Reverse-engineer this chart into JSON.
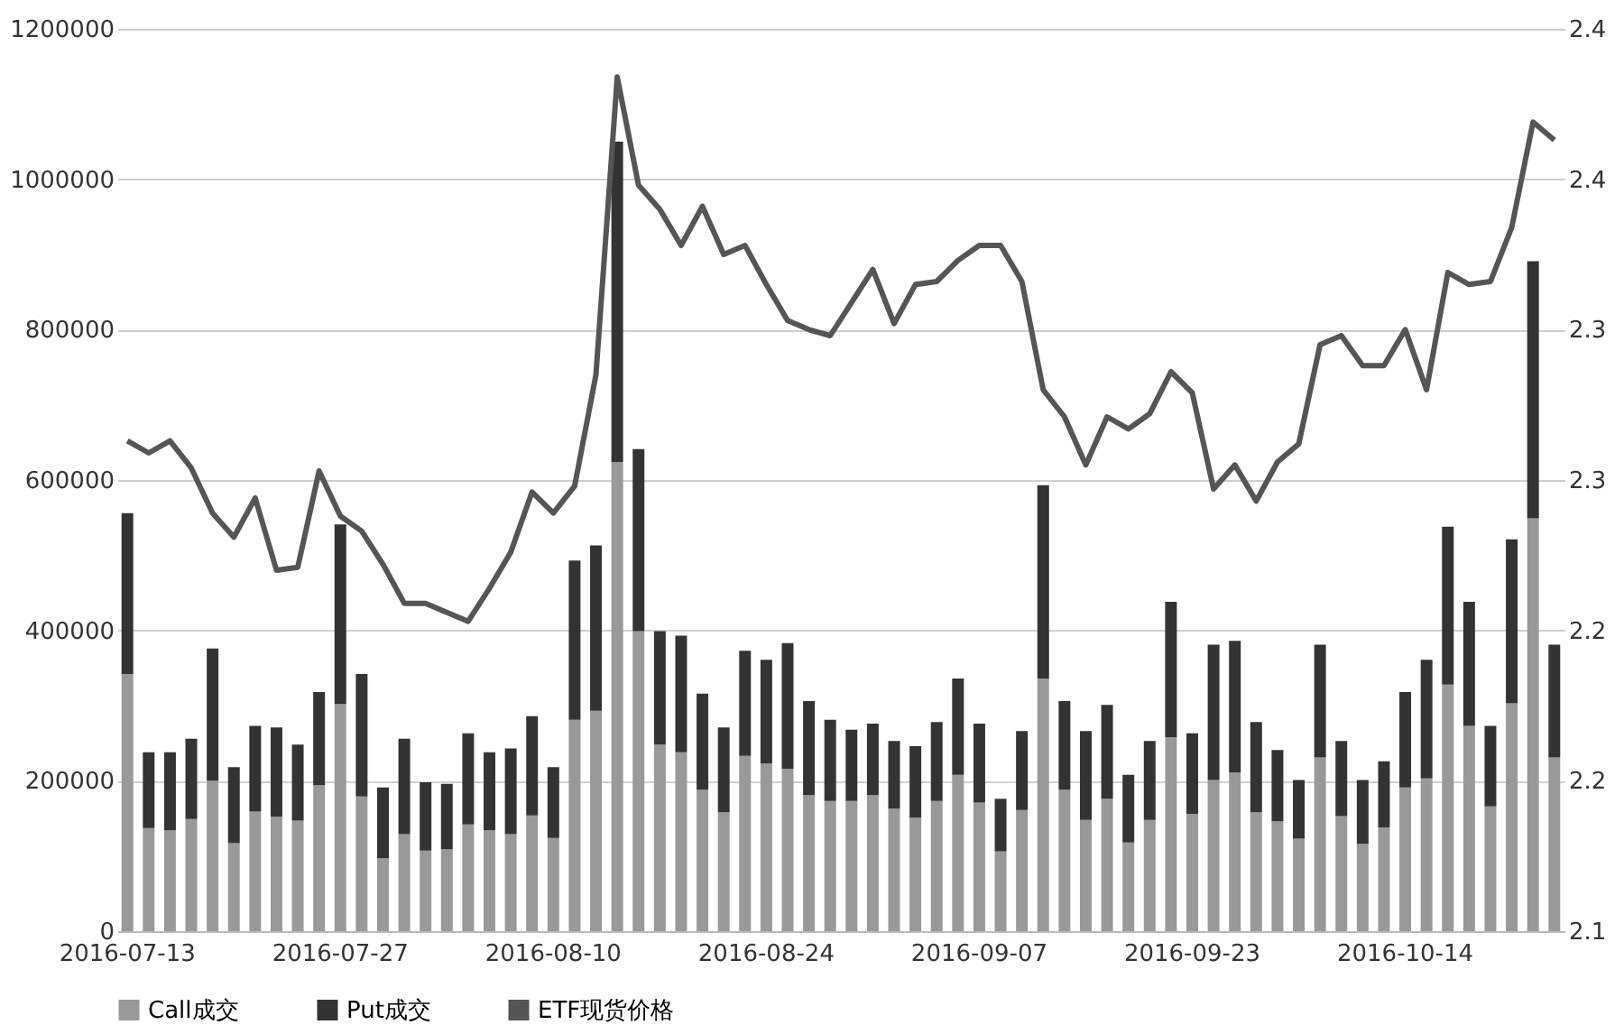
{
  "chart_data": {
    "type": "bar",
    "stacked": true,
    "categories": [
      "2016-07-13",
      null,
      null,
      null,
      null,
      null,
      null,
      null,
      null,
      null,
      "2016-07-27",
      null,
      null,
      null,
      null,
      null,
      null,
      null,
      null,
      null,
      "2016-08-10",
      null,
      null,
      null,
      null,
      null,
      null,
      null,
      null,
      null,
      "2016-08-24",
      null,
      null,
      null,
      null,
      null,
      null,
      null,
      null,
      null,
      "2016-09-07",
      null,
      null,
      null,
      null,
      null,
      null,
      null,
      null,
      null,
      "2016-09-23",
      null,
      null,
      null,
      null,
      null,
      null,
      null,
      null,
      null,
      "2016-10-14",
      null,
      null,
      null,
      null,
      null,
      null,
      null
    ],
    "series": [
      {
        "name": "Call成交",
        "color": "#999999",
        "values": [
          342000,
          137000,
          134000,
          149000,
          200000,
          117000,
          159000,
          152000,
          147000,
          194000,
          302000,
          179000,
          97000,
          129000,
          107000,
          109000,
          142000,
          134000,
          129000,
          154000,
          124000,
          281000,
          293000,
          624000,
          399000,
          248000,
          238000,
          188000,
          158000,
          233000,
          223000,
          216000,
          181000,
          173000,
          173000,
          181000,
          163000,
          151000,
          173000,
          208000,
          171000,
          106000,
          161000,
          336000,
          188000,
          148000,
          176000,
          118000,
          148000,
          258000,
          156000,
          201000,
          211000,
          158000,
          146000,
          123000,
          231000,
          153000,
          116000,
          138000,
          191000,
          203000,
          328000,
          273000,
          166000,
          303000,
          549000,
          231000
        ]
      },
      {
        "name": "Put成交",
        "color": "#333333",
        "values": [
          214000,
          101000,
          104000,
          107000,
          176000,
          101000,
          114000,
          119000,
          101000,
          124000,
          239000,
          163000,
          94000,
          127000,
          91000,
          87000,
          121000,
          104000,
          114000,
          132000,
          94000,
          212000,
          220000,
          426000,
          242000,
          151000,
          155000,
          128000,
          113000,
          140000,
          138000,
          167000,
          125000,
          108000,
          95000,
          95000,
          90000,
          95000,
          105000,
          128000,
          105000,
          70000,
          105000,
          257000,
          118000,
          118000,
          125000,
          90000,
          105000,
          180000,
          107000,
          180000,
          175000,
          120000,
          95000,
          78000,
          150000,
          100000,
          85000,
          88000,
          127000,
          158000,
          210000,
          165000,
          107000,
          218000,
          342000,
          150000
        ]
      },
      {
        "name": "ETF现货价格",
        "type": "line",
        "axis": "y2",
        "color": "#555555",
        "values": [
          2.263,
          2.259,
          2.263,
          2.254,
          2.239,
          2.231,
          2.244,
          2.22,
          2.221,
          2.253,
          2.238,
          2.233,
          2.222,
          2.209,
          2.209,
          2.206,
          2.203,
          2.214,
          2.226,
          2.246,
          2.239,
          2.248,
          2.285,
          2.384,
          2.348,
          2.34,
          2.328,
          2.341,
          2.325,
          2.328,
          2.315,
          2.303,
          2.3,
          2.298,
          2.309,
          2.32,
          2.302,
          2.315,
          2.316,
          2.323,
          2.328,
          2.328,
          2.316,
          2.28,
          2.271,
          2.255,
          2.271,
          2.267,
          2.272,
          2.286,
          2.279,
          2.247,
          2.255,
          2.243,
          2.256,
          2.262,
          2.295,
          2.298,
          2.288,
          2.288,
          2.3,
          2.28,
          2.319,
          2.315,
          2.316,
          2.334,
          2.369,
          2.363
        ]
      }
    ],
    "ylim": [
      0,
      1200000
    ],
    "yticks": [
      0,
      200000,
      400000,
      600000,
      800000,
      1000000,
      1200000
    ],
    "y2lim": [
      2.1,
      2.4
    ],
    "y2ticks": [
      2.1,
      {
        "value": 2.15,
        "label": "2.2"
      },
      2.2,
      {
        "value": 2.25,
        "label": "2.3"
      },
      2.3,
      {
        "value": 2.35,
        "label": "2.4"
      },
      2.4
    ],
    "grid": "y",
    "legend": "bottom",
    "line_style": "solid",
    "marker": "none"
  }
}
